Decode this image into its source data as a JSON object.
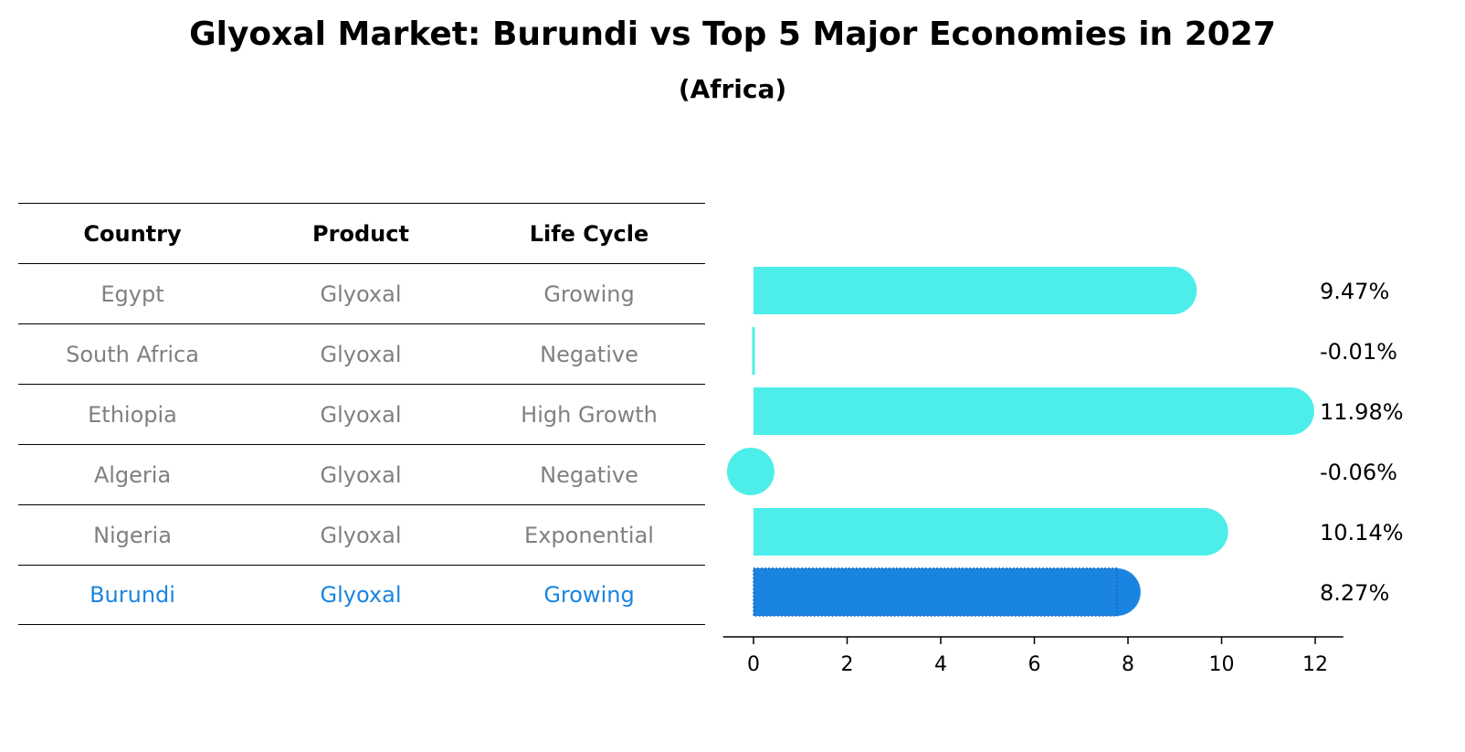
{
  "title": "Glyoxal Market: Burundi vs Top 5 Major Economies in 2027",
  "subtitle": "(Africa)",
  "table": {
    "headers": [
      "Country",
      "Product",
      "Life Cycle"
    ],
    "rows": [
      {
        "country": "Egypt",
        "product": "Glyoxal",
        "life_cycle": "Growing"
      },
      {
        "country": "South Africa",
        "product": "Glyoxal",
        "life_cycle": "Negative"
      },
      {
        "country": "Ethiopia",
        "product": "Glyoxal",
        "life_cycle": "High Growth"
      },
      {
        "country": "Algeria",
        "product": "Glyoxal",
        "life_cycle": "Negative"
      },
      {
        "country": "Nigeria",
        "product": "Glyoxal",
        "life_cycle": "Exponential"
      },
      {
        "country": "Burundi",
        "product": "Glyoxal",
        "life_cycle": "Growing"
      }
    ],
    "highlight_color": "#1a85e0",
    "text_color": "#808080"
  },
  "chart_data": {
    "type": "bar",
    "orientation": "horizontal",
    "categories": [
      "Egypt",
      "South Africa",
      "Ethiopia",
      "Algeria",
      "Nigeria",
      "Burundi"
    ],
    "values": [
      9.47,
      -0.01,
      11.98,
      -0.06,
      10.14,
      8.27
    ],
    "value_labels": [
      "9.47%",
      "-0.01%",
      "11.98%",
      "-0.06%",
      "10.14%",
      "8.27%"
    ],
    "highlight_index": 5,
    "xticks": [
      0,
      2,
      4,
      6,
      8,
      10,
      12
    ],
    "xlim": [
      -0.65,
      12.6
    ],
    "bar_color": "#4deeea",
    "highlight_color": "#1a85e0",
    "grid": false
  }
}
